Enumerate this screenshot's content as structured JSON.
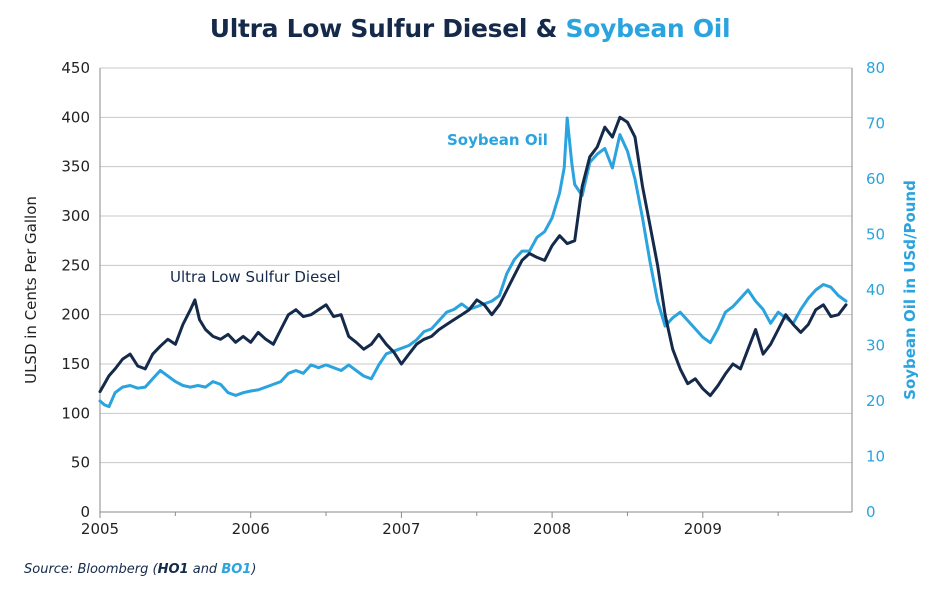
{
  "title": {
    "part1": "Ultra Low Sulfur Diesel",
    "separator": "&",
    "part2": "Soybean Oil"
  },
  "source": {
    "prefix": "Source: Bloomberg (",
    "ticker1": "HO1",
    "and": " and ",
    "ticker2": "BO1",
    "suffix": ")"
  },
  "colors": {
    "ulsd": "#152a4a",
    "soy": "#2aa3de",
    "grid": "#c8c8c8",
    "axis": "#8a8a8a"
  },
  "chart_data": {
    "type": "line",
    "xlim": [
      2005.0,
      2009.99
    ],
    "y_left": {
      "label": "ULSD in Cents Per Gallon",
      "range": [
        0,
        450
      ],
      "ticks": [
        0,
        50,
        100,
        150,
        200,
        250,
        300,
        350,
        400,
        450
      ]
    },
    "y_right": {
      "label": "Soybean Oil in USd/Pound",
      "range": [
        0,
        80
      ],
      "ticks": [
        0,
        10,
        20,
        30,
        40,
        50,
        60,
        70,
        80
      ]
    },
    "x_ticks": [
      2005,
      2006,
      2007,
      2008,
      2009
    ],
    "grid": "horizontal",
    "annotations": [
      {
        "text": "Ultra Low Sulfur Diesel",
        "series": "ulsd"
      },
      {
        "text": "Soybean Oil",
        "series": "soy"
      }
    ],
    "series": [
      {
        "name": "Ultra Low Sulfur Diesel",
        "axis": "left",
        "x": [
          2005.0,
          2005.03,
          2005.06,
          2005.1,
          2005.15,
          2005.2,
          2005.25,
          2005.3,
          2005.35,
          2005.4,
          2005.45,
          2005.5,
          2005.55,
          2005.6,
          2005.63,
          2005.66,
          2005.7,
          2005.75,
          2005.8,
          2005.85,
          2005.9,
          2005.95,
          2006.0,
          2006.05,
          2006.1,
          2006.15,
          2006.2,
          2006.25,
          2006.3,
          2006.35,
          2006.4,
          2006.45,
          2006.5,
          2006.55,
          2006.6,
          2006.65,
          2006.7,
          2006.75,
          2006.8,
          2006.85,
          2006.9,
          2006.95,
          2007.0,
          2007.05,
          2007.1,
          2007.15,
          2007.2,
          2007.25,
          2007.3,
          2007.35,
          2007.4,
          2007.45,
          2007.5,
          2007.55,
          2007.6,
          2007.65,
          2007.7,
          2007.75,
          2007.8,
          2007.85,
          2007.9,
          2007.95,
          2008.0,
          2008.05,
          2008.1,
          2008.15,
          2008.2,
          2008.25,
          2008.3,
          2008.35,
          2008.4,
          2008.45,
          2008.5,
          2008.55,
          2008.6,
          2008.65,
          2008.7,
          2008.75,
          2008.8,
          2008.85,
          2008.9,
          2008.95,
          2009.0,
          2009.05,
          2009.1,
          2009.15,
          2009.2,
          2009.25,
          2009.3,
          2009.35,
          2009.4,
          2009.45,
          2009.5,
          2009.55,
          2009.6,
          2009.65,
          2009.7,
          2009.75,
          2009.8,
          2009.85,
          2009.9,
          2009.95
        ],
        "values": [
          122,
          130,
          138,
          145,
          155,
          160,
          148,
          145,
          160,
          168,
          175,
          170,
          190,
          205,
          215,
          195,
          185,
          178,
          175,
          180,
          172,
          178,
          172,
          182,
          175,
          170,
          185,
          200,
          205,
          198,
          200,
          205,
          210,
          198,
          200,
          178,
          172,
          165,
          170,
          180,
          170,
          162,
          150,
          160,
          170,
          175,
          178,
          185,
          190,
          195,
          200,
          205,
          215,
          210,
          200,
          210,
          225,
          240,
          255,
          262,
          258,
          255,
          270,
          280,
          272,
          275,
          330,
          360,
          370,
          390,
          380,
          400,
          395,
          380,
          330,
          290,
          250,
          200,
          165,
          145,
          130,
          135,
          125,
          118,
          128,
          140,
          150,
          145,
          165,
          185,
          160,
          170,
          185,
          200,
          190,
          182,
          190,
          205,
          210,
          198,
          200,
          210
        ]
      },
      {
        "name": "Soybean Oil",
        "axis": "right",
        "x": [
          2005.0,
          2005.03,
          2005.06,
          2005.1,
          2005.15,
          2005.2,
          2005.25,
          2005.3,
          2005.35,
          2005.4,
          2005.45,
          2005.5,
          2005.55,
          2005.6,
          2005.65,
          2005.7,
          2005.75,
          2005.8,
          2005.85,
          2005.9,
          2005.95,
          2006.0,
          2006.05,
          2006.1,
          2006.15,
          2006.2,
          2006.25,
          2006.3,
          2006.35,
          2006.4,
          2006.45,
          2006.5,
          2006.55,
          2006.6,
          2006.65,
          2006.7,
          2006.75,
          2006.8,
          2006.85,
          2006.9,
          2006.95,
          2007.0,
          2007.05,
          2007.1,
          2007.15,
          2007.2,
          2007.25,
          2007.3,
          2007.35,
          2007.4,
          2007.45,
          2007.5,
          2007.55,
          2007.6,
          2007.65,
          2007.7,
          2007.75,
          2007.8,
          2007.85,
          2007.9,
          2007.95,
          2008.0,
          2008.05,
          2008.08,
          2008.1,
          2008.13,
          2008.15,
          2008.2,
          2008.25,
          2008.3,
          2008.35,
          2008.4,
          2008.45,
          2008.5,
          2008.55,
          2008.6,
          2008.65,
          2008.7,
          2008.75,
          2008.8,
          2008.85,
          2008.9,
          2008.95,
          2009.0,
          2009.05,
          2009.1,
          2009.15,
          2009.2,
          2009.25,
          2009.3,
          2009.35,
          2009.4,
          2009.45,
          2009.5,
          2009.55,
          2009.6,
          2009.65,
          2009.7,
          2009.75,
          2009.8,
          2009.85,
          2009.9,
          2009.95
        ],
        "values": [
          20.0,
          19.3,
          19.0,
          21.5,
          22.5,
          22.8,
          22.3,
          22.5,
          24.0,
          25.5,
          24.5,
          23.5,
          22.8,
          22.5,
          22.8,
          22.5,
          23.5,
          23.0,
          21.5,
          21.0,
          21.5,
          21.8,
          22.0,
          22.5,
          23.0,
          23.5,
          25.0,
          25.5,
          25.0,
          26.5,
          26.0,
          26.5,
          26.0,
          25.5,
          26.5,
          25.5,
          24.5,
          24.0,
          26.5,
          28.5,
          29.0,
          29.5,
          30.0,
          31.0,
          32.5,
          33.0,
          34.5,
          36.0,
          36.5,
          37.5,
          36.5,
          37.0,
          37.5,
          38.0,
          39.0,
          43.0,
          45.5,
          47.0,
          47.0,
          49.5,
          50.5,
          53.0,
          57.5,
          62.0,
          71.0,
          63.0,
          59.0,
          57.0,
          63.0,
          64.5,
          65.5,
          62.0,
          68.0,
          65.0,
          60.0,
          53.0,
          45.0,
          38.0,
          33.5,
          35.0,
          36.0,
          34.5,
          33.0,
          31.5,
          30.5,
          33.0,
          36.0,
          37.0,
          38.5,
          40.0,
          38.0,
          36.5,
          34.0,
          36.0,
          35.0,
          34.0,
          36.5,
          38.5,
          40.0,
          41.0,
          40.5,
          39.0,
          38.0
        ]
      }
    ]
  }
}
